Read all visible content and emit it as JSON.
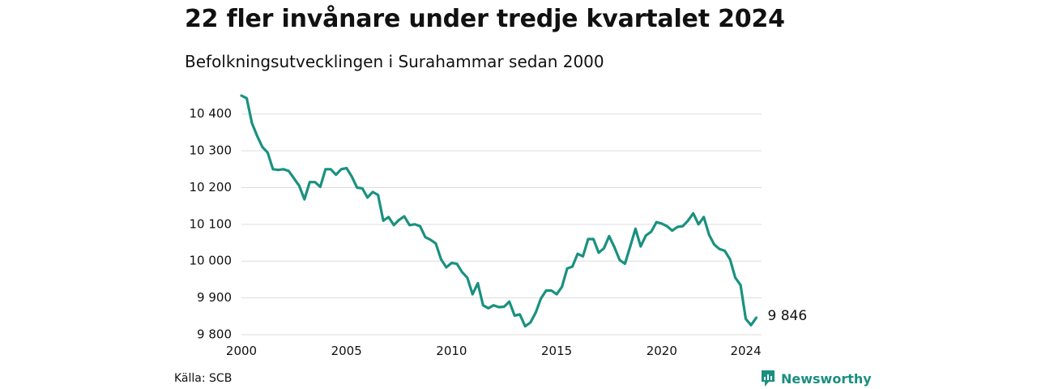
{
  "title": "22 fler invånare under tredje kvartalet 2024",
  "subtitle": "Befolkningsutvecklingen i Surahammar sedan 2000",
  "source": "Källa: SCB",
  "brand": "Newsworthy",
  "colors": {
    "line": "#1a9180",
    "grid": "#dddddd",
    "text": "#111111",
    "brand": "#1a8f7f"
  },
  "chart_data": {
    "type": "line",
    "xlim": [
      2000,
      2024.75
    ],
    "ylim": [
      9800,
      10450
    ],
    "x_ticks": [
      2000,
      2005,
      2010,
      2015,
      2020,
      2024
    ],
    "x_tick_labels": [
      "2000",
      "2005",
      "2010",
      "2015",
      "2020",
      "2024"
    ],
    "y_ticks": [
      9800,
      9900,
      10000,
      10100,
      10200,
      10300,
      10400
    ],
    "y_tick_labels": [
      "9 800",
      "9 900",
      "10 000",
      "10 100",
      "10 200",
      "10 300",
      "10 400"
    ],
    "grid": "horizontal",
    "end_label": "9 846",
    "x": [
      2000.0,
      2000.25,
      2000.5,
      2000.75,
      2001.0,
      2001.25,
      2001.5,
      2001.75,
      2002.0,
      2002.25,
      2002.5,
      2002.75,
      2003.0,
      2003.25,
      2003.5,
      2003.75,
      2004.0,
      2004.25,
      2004.5,
      2004.75,
      2005.0,
      2005.25,
      2005.5,
      2005.75,
      2006.0,
      2006.25,
      2006.5,
      2006.75,
      2007.0,
      2007.25,
      2007.5,
      2007.75,
      2008.0,
      2008.25,
      2008.5,
      2008.75,
      2009.0,
      2009.25,
      2009.5,
      2009.75,
      2010.0,
      2010.25,
      2010.5,
      2010.75,
      2011.0,
      2011.25,
      2011.5,
      2011.75,
      2012.0,
      2012.25,
      2012.5,
      2012.75,
      2013.0,
      2013.25,
      2013.5,
      2013.75,
      2014.0,
      2014.25,
      2014.5,
      2014.75,
      2015.0,
      2015.25,
      2015.5,
      2015.75,
      2016.0,
      2016.25,
      2016.5,
      2016.75,
      2017.0,
      2017.25,
      2017.5,
      2017.75,
      2018.0,
      2018.25,
      2018.5,
      2018.75,
      2019.0,
      2019.25,
      2019.5,
      2019.75,
      2020.0,
      2020.25,
      2020.5,
      2020.75,
      2021.0,
      2021.25,
      2021.5,
      2021.75,
      2022.0,
      2022.25,
      2022.5,
      2022.75,
      2023.0,
      2023.25,
      2023.5,
      2023.75,
      2024.0,
      2024.25,
      2024.5
    ],
    "values": [
      10450,
      10443,
      10375,
      10340,
      10310,
      10295,
      10250,
      10248,
      10250,
      10245,
      10225,
      10205,
      10168,
      10215,
      10215,
      10202,
      10250,
      10250,
      10235,
      10250,
      10253,
      10230,
      10200,
      10198,
      10173,
      10188,
      10180,
      10110,
      10120,
      10098,
      10112,
      10122,
      10098,
      10100,
      10095,
      10065,
      10058,
      10048,
      10005,
      9983,
      9995,
      9993,
      9970,
      9955,
      9910,
      9940,
      9880,
      9872,
      9880,
      9875,
      9876,
      9890,
      9852,
      9855,
      9823,
      9833,
      9860,
      9898,
      9920,
      9920,
      9910,
      9930,
      9980,
      9985,
      10020,
      10013,
      10060,
      10060,
      10023,
      10035,
      10068,
      10038,
      10003,
      9993,
      10040,
      10088,
      10040,
      10070,
      10080,
      10106,
      10102,
      10095,
      10083,
      10093,
      10095,
      10110,
      10130,
      10100,
      10120,
      10072,
      10045,
      10033,
      10028,
      10005,
      9955,
      9935,
      9843,
      9826,
      9846
    ]
  }
}
